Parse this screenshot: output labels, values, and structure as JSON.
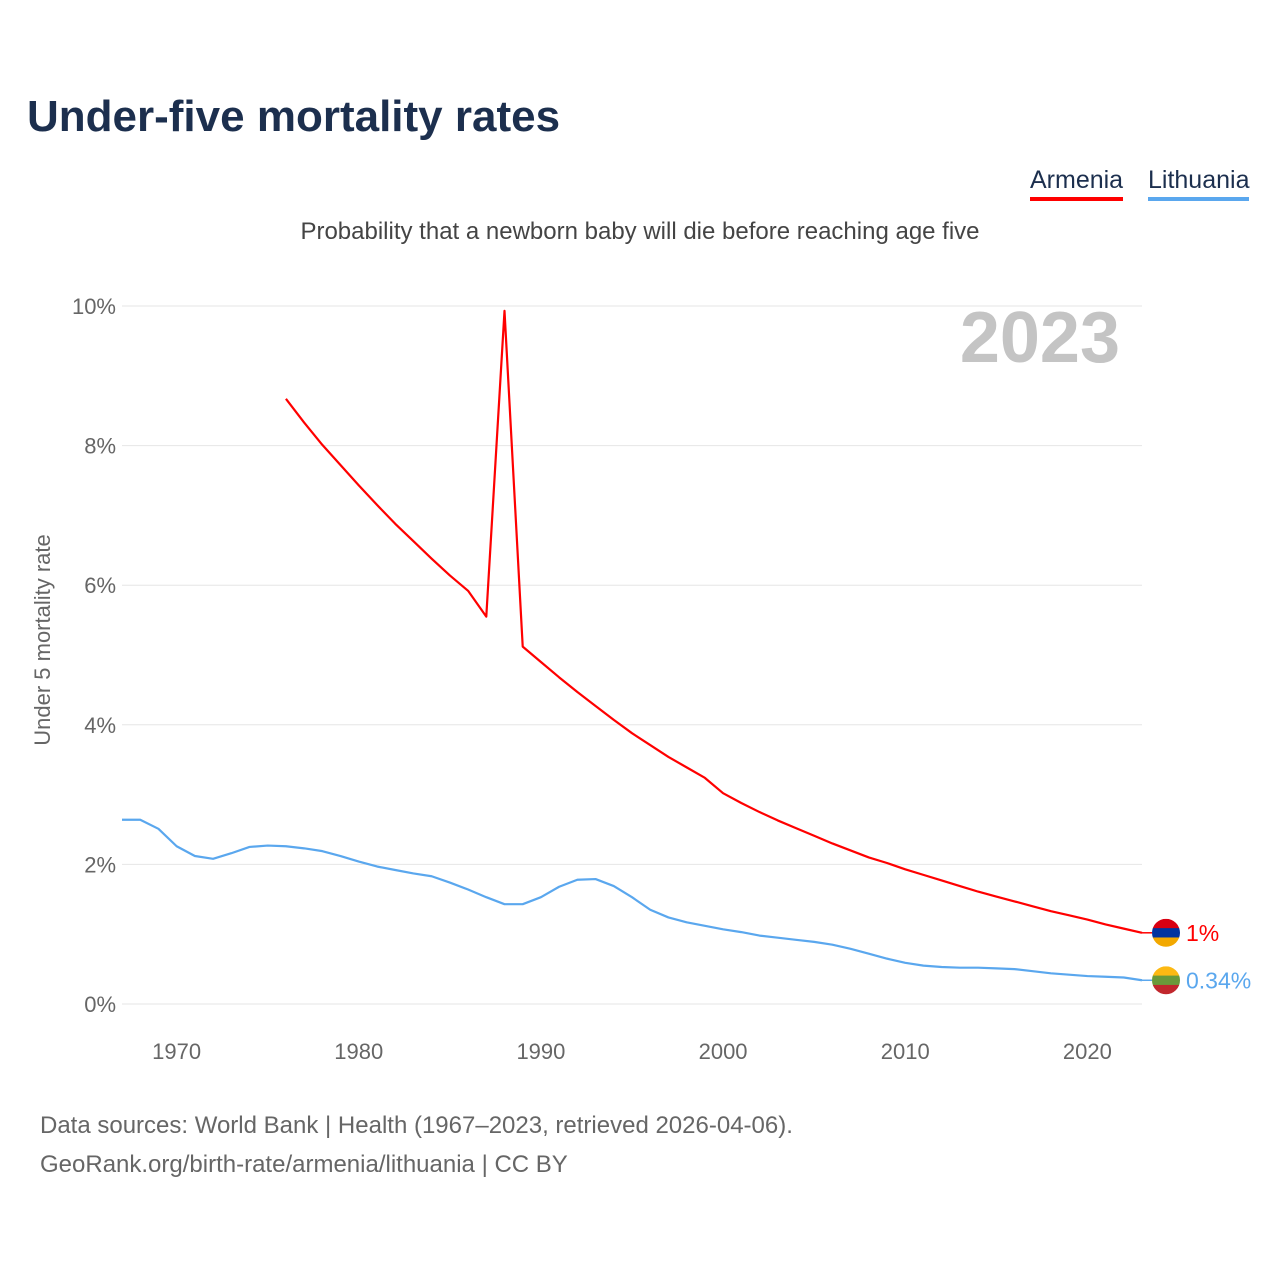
{
  "title": "Under-five mortality rates",
  "subtitle": "Probability that a newborn baby will die before reaching age five",
  "legend": [
    "Armenia",
    "Lithuania"
  ],
  "source_line1": "Data sources: World Bank | Health (1967–2023, retrieved 2026-04-06).",
  "source_line2": "GeoRank.org/birth-rate/armenia/lithuania | CC BY",
  "chart_data": {
    "type": "line",
    "title": "Under-five mortality rates",
    "ylabel": "Under 5 mortality rate",
    "xlabel": "",
    "year_watermark": "2023",
    "xlim": [
      1967,
      2023
    ],
    "ylim": [
      0,
      10
    ],
    "xticks": [
      1970,
      1980,
      1990,
      2000,
      2010,
      2020
    ],
    "yticks": [
      "0%",
      "2%",
      "4%",
      "6%",
      "8%",
      "10%"
    ],
    "grid": true,
    "legend_position": "top-right",
    "series": [
      {
        "name": "Armenia",
        "color": "#ff0000",
        "end_label": "1%",
        "start_year": 1976,
        "values": [
          8.67,
          8.33,
          8.01,
          7.72,
          7.43,
          7.15,
          6.88,
          6.63,
          6.38,
          6.14,
          5.92,
          5.55,
          9.93,
          5.12,
          4.9,
          4.68,
          4.47,
          4.27,
          4.07,
          3.88,
          3.71,
          3.54,
          3.39,
          3.24,
          3.02,
          2.88,
          2.75,
          2.63,
          2.52,
          2.41,
          2.3,
          2.2,
          2.1,
          2.02,
          1.93,
          1.85,
          1.77,
          1.69,
          1.61,
          1.54,
          1.47,
          1.4,
          1.33,
          1.27,
          1.21,
          1.14,
          1.08,
          1.02
        ]
      },
      {
        "name": "Lithuania",
        "color": "#5aa7ee",
        "end_label": "0.34%",
        "start_year": 1967,
        "values": [
          2.64,
          2.64,
          2.51,
          2.26,
          2.12,
          2.08,
          2.16,
          2.25,
          2.27,
          2.26,
          2.23,
          2.19,
          2.12,
          2.04,
          1.97,
          1.92,
          1.87,
          1.83,
          1.74,
          1.64,
          1.53,
          1.43,
          1.43,
          1.53,
          1.68,
          1.78,
          1.79,
          1.69,
          1.53,
          1.35,
          1.24,
          1.17,
          1.12,
          1.07,
          1.03,
          0.98,
          0.95,
          0.92,
          0.89,
          0.85,
          0.79,
          0.72,
          0.65,
          0.59,
          0.55,
          0.53,
          0.52,
          0.52,
          0.51,
          0.5,
          0.47,
          0.44,
          0.42,
          0.4,
          0.39,
          0.38,
          0.34
        ]
      }
    ]
  }
}
